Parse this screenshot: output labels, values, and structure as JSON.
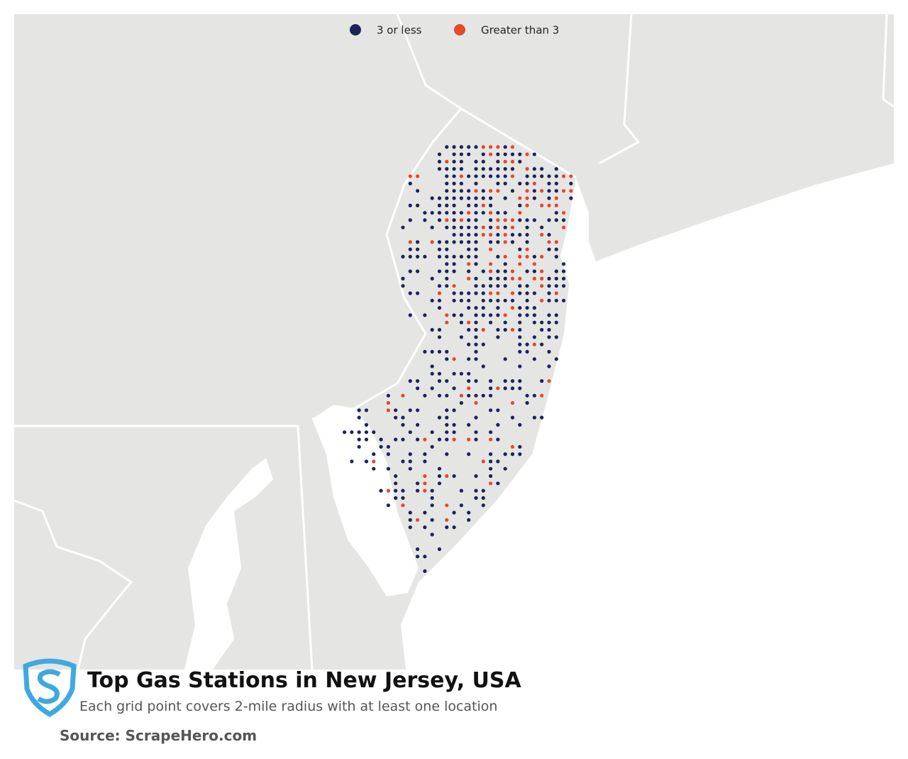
{
  "legend": {
    "items": [
      {
        "label": "3 or less",
        "color": "#1b2359"
      },
      {
        "label": "Greater than 3",
        "color": "#e4492a"
      }
    ]
  },
  "title": "Top Gas Stations in New Jersey, USA",
  "subtitle": "Each grid point covers 2-mile radius with at least one location",
  "source": "Source: ScrapeHero.com"
}
